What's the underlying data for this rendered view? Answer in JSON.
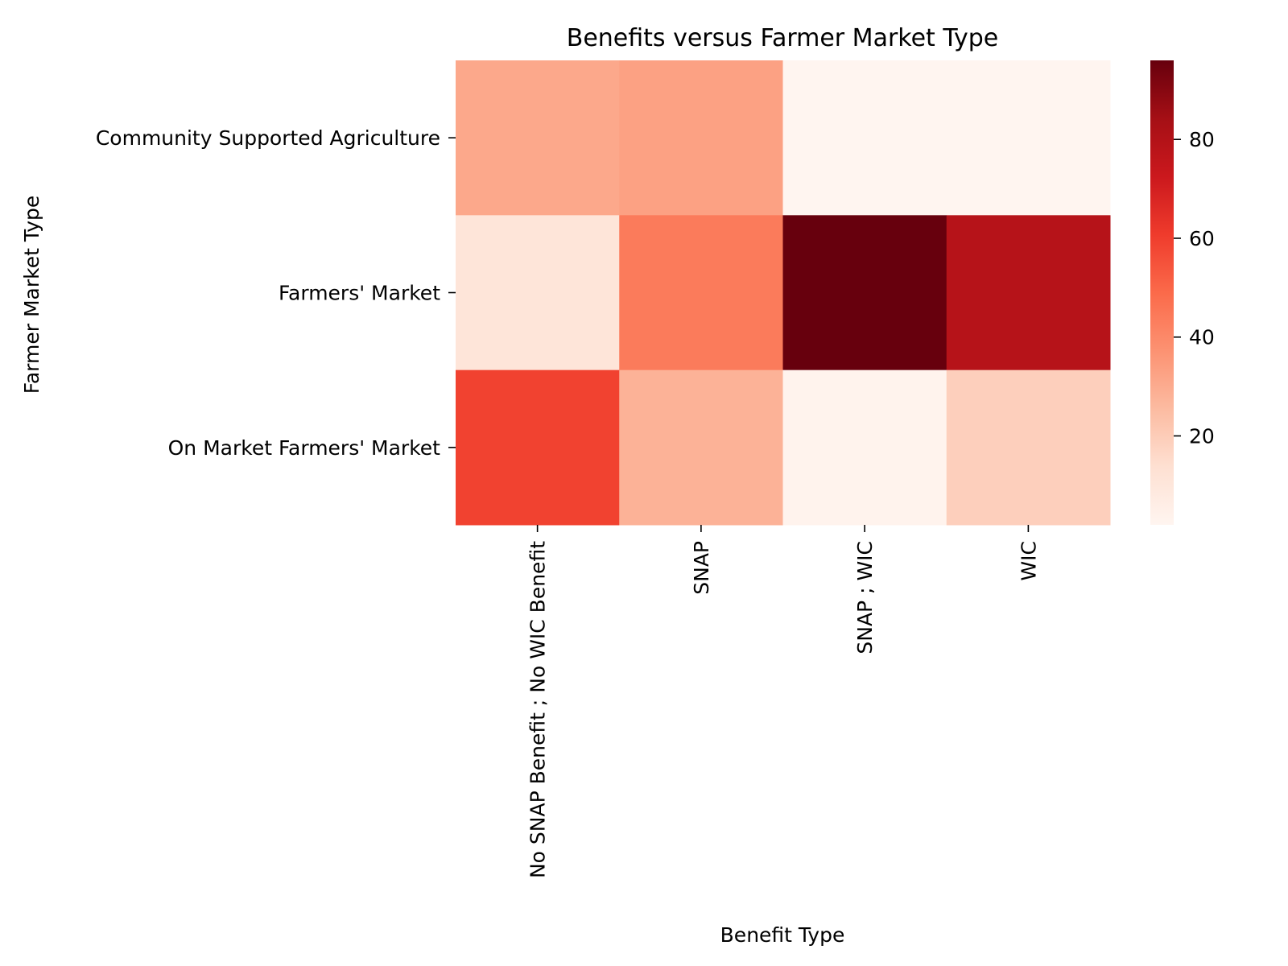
{
  "chart_data": {
    "type": "heatmap",
    "title": "Benefits versus Farmer Market Type",
    "xlabel": "Benefit Type",
    "ylabel": "Farmer Market Type",
    "x_categories": [
      "No SNAP Benefit ; No WIC Benefit",
      "SNAP",
      "SNAP ; WIC",
      "WIC"
    ],
    "y_categories": [
      "Community Supported Agriculture",
      "Farmers' Market",
      "On Market Farmers' Market"
    ],
    "values": [
      [
        31,
        33,
        2,
        2
      ],
      [
        11,
        44,
        96,
        79
      ],
      [
        59,
        28,
        3,
        19
      ]
    ],
    "colormap": "Reds",
    "color_range": [
      2,
      96
    ],
    "colorbar_ticks": [
      20,
      40,
      60,
      80
    ],
    "grid": false
  },
  "colors": {
    "low": "#fff5f0",
    "high": "#67000d"
  }
}
